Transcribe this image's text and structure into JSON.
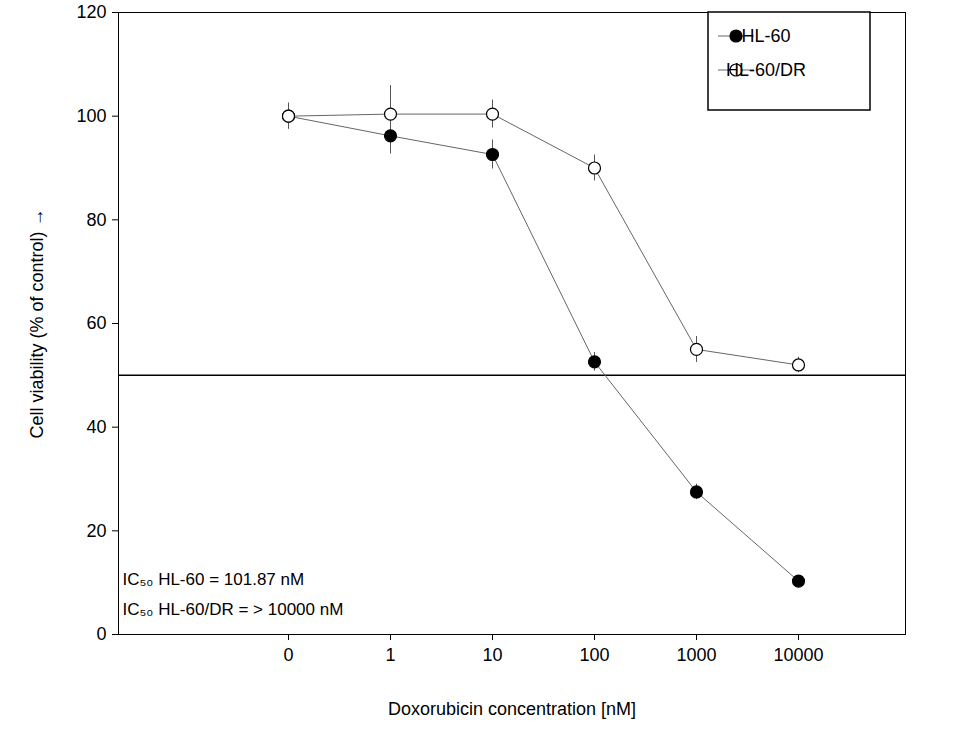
{
  "chart_data": {
    "type": "line",
    "x_label": "Doxorubicin concentration [nM]",
    "y_label": "Cell viability (% of control)",
    "categories": [
      "0",
      "1",
      "10",
      "100",
      "1000",
      "10000"
    ],
    "series": [
      {
        "name": "HL-60",
        "color": "#000000",
        "marker": "filled_circle",
        "values": [
          100,
          96.2,
          92.6,
          52.6,
          27.5,
          10.3
        ],
        "errors": [
          2.5,
          3.5,
          2.8,
          1.8,
          1.5,
          0.8
        ]
      },
      {
        "name": "HL-60/DR",
        "color": "#000000",
        "marker": "open_circle",
        "values": [
          100,
          100.4,
          100.4,
          90,
          55,
          52
        ],
        "errors": [
          2.5,
          5.5,
          2.7,
          2.5,
          2.5,
          1.5
        ]
      }
    ],
    "hline": 50,
    "annotations": [
      "IC₅₀ HL-60 = 101.87 nM",
      "IC₅₀ HL-60/DR = > 10000 nM"
    ],
    "ylim": [
      0,
      120
    ],
    "yticks": [
      0,
      20,
      40,
      60,
      80,
      100,
      120
    ],
    "grid": false,
    "legend": "upper right"
  }
}
